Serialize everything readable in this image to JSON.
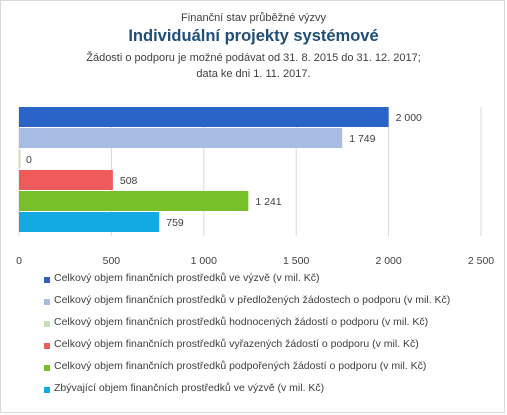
{
  "chart_data": {
    "type": "bar",
    "orientation": "horizontal",
    "suptitle": "Finanční stav průběžné výzvy",
    "title": "Individuální projekty systémové",
    "subtitle_lines": [
      "Žádosti o podporu je možné  podávat od 31. 8. 2015 do 31. 12. 2017;",
      "data ke dni 1. 11. 2017."
    ],
    "xlim": [
      0,
      2500
    ],
    "xticks": [
      0,
      500,
      1000,
      1500,
      2000,
      2500
    ],
    "xtick_labels": [
      "0",
      "500",
      "1 000",
      "1 500",
      "2 000",
      "2 500"
    ],
    "grid": "vertical",
    "legend_position": "bottom",
    "series": [
      {
        "name": "Celkový objem finančních prostředků ve výzvě (v mil. Kč)",
        "value": 2000,
        "label": "2 000",
        "color": "#2a64c9"
      },
      {
        "name": "Celkový objem finančních prostředků v předložených žádostech o podporu (v mil. Kč)",
        "value": 1749,
        "label": "1 749",
        "color": "#a9bde4"
      },
      {
        "name": "Celkový objem finančních prostředků hodnocených žádostí o podporu (v mil. Kč)",
        "value": 0,
        "label": "0",
        "color": "#c6e0b4"
      },
      {
        "name": "Celkový objem finančních prostředků vyřazených žádostí o podporu (v mil. Kč)",
        "value": 508,
        "label": "508",
        "color": "#ef5a5a"
      },
      {
        "name": "Celkový objem finančních prostředků podpořených žádostí o podporu (v mil. Kč)",
        "value": 1241,
        "label": "1 241",
        "color": "#78c02a"
      },
      {
        "name": "Zbývající objem finančních prostředků ve výzvě (v mil. Kč)",
        "value": 759,
        "label": "759",
        "color": "#14a9e2"
      }
    ]
  }
}
